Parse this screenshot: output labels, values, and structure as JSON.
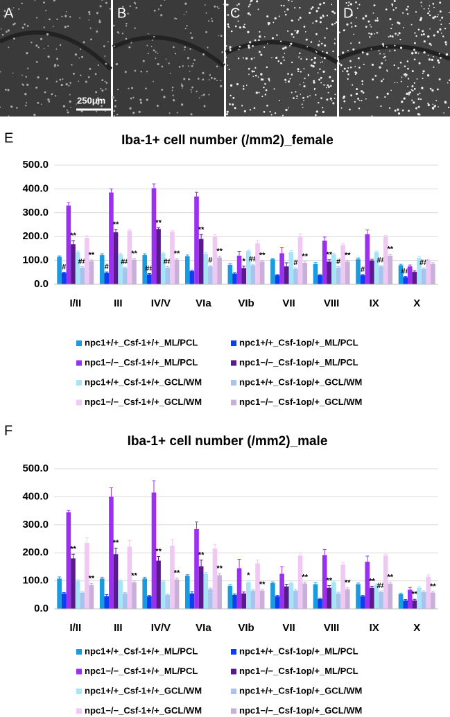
{
  "panels": [
    {
      "label": "A"
    },
    {
      "label": "B"
    },
    {
      "label": "C"
    },
    {
      "label": "D"
    }
  ],
  "scale_bar": "250μm",
  "chart_data": [
    {
      "type": "bar",
      "panel": "E",
      "title": "Iba-1+ cell number (/mm2)_female",
      "categories": [
        "I/II",
        "III",
        "IV/V",
        "VIa",
        "VIb",
        "VII",
        "VIII",
        "IX",
        "X"
      ],
      "ylim": [
        0,
        500
      ],
      "yticks": [
        {
          "value": 0,
          "label": "0.0"
        },
        {
          "value": 100,
          "label": "100.0"
        },
        {
          "value": 200,
          "label": "200.0"
        },
        {
          "value": 300,
          "label": "300.0"
        },
        {
          "value": 400,
          "label": "400.0"
        },
        {
          "value": 500,
          "label": "500.0"
        }
      ],
      "grid": true,
      "series": [
        {
          "name": "npc1+/+_Csf-1+/+_ML/PCL",
          "color": "#1a9be0",
          "values": [
            115,
            122,
            122,
            118,
            82,
            105,
            85,
            105,
            80
          ],
          "errors": [
            4,
            6,
            6,
            5,
            4,
            3,
            6,
            5,
            4
          ],
          "annotations": [
            null,
            null,
            null,
            null,
            null,
            null,
            null,
            null,
            null
          ]
        },
        {
          "name": "npc1+/+_Csf-1op/+_ML/PCL",
          "color": "#0a3ef0",
          "values": [
            48,
            48,
            42,
            55,
            45,
            38,
            38,
            38,
            30
          ],
          "errors": [
            3,
            4,
            3,
            4,
            3,
            3,
            3,
            3,
            3
          ],
          "annotations": [
            "#",
            "#",
            "##",
            null,
            null,
            null,
            null,
            "#",
            "##"
          ]
        },
        {
          "name": "npc1−/−_Csf-1+/+_ML/PCL",
          "color": "#9b30f0",
          "values": [
            330,
            385,
            403,
            368,
            120,
            130,
            183,
            210,
            75
          ],
          "errors": [
            12,
            15,
            18,
            18,
            18,
            25,
            15,
            18,
            6
          ],
          "annotations": [
            null,
            null,
            null,
            null,
            null,
            null,
            null,
            null,
            null
          ]
        },
        {
          "name": "npc1−/−_Csf-1op/+_ML/PCL",
          "color": "#5a1a8c",
          "values": [
            168,
            218,
            232,
            190,
            68,
            75,
            95,
            100,
            52
          ],
          "errors": [
            15,
            12,
            5,
            18,
            8,
            15,
            8,
            5,
            4
          ],
          "annotations": [
            "**",
            "**",
            "**",
            "**",
            "*",
            null,
            "**",
            null,
            null
          ]
        },
        {
          "name": "npc1+/+_Csf-1+/+_GCL/WM",
          "color": "#a8e4f8",
          "values": [
            135,
            125,
            130,
            128,
            140,
            135,
            125,
            135,
            110
          ],
          "errors": [
            5,
            5,
            5,
            6,
            5,
            6,
            5,
            4,
            6
          ],
          "annotations": [
            null,
            null,
            null,
            null,
            null,
            null,
            null,
            null,
            null
          ]
        },
        {
          "name": "npc1+/+_Csf-1op/+_GCL/WM",
          "color": "#a8c4ec",
          "values": [
            70,
            68,
            70,
            75,
            80,
            65,
            70,
            75,
            65
          ],
          "errors": [
            4,
            4,
            4,
            4,
            4,
            4,
            4,
            4,
            4
          ],
          "annotations": [
            "##",
            "##",
            "##",
            "#",
            "##",
            "#",
            "#",
            "##",
            "##"
          ]
        },
        {
          "name": "npc1−/−_Csf-1+/+_GCL/WM",
          "color": "#f0c8f4",
          "values": [
            195,
            225,
            220,
            200,
            172,
            200,
            165,
            200,
            100
          ],
          "errors": [
            8,
            5,
            5,
            8,
            10,
            12,
            6,
            5,
            5
          ],
          "annotations": [
            null,
            null,
            null,
            null,
            null,
            null,
            null,
            null,
            null
          ]
        },
        {
          "name": "npc1−/−_Csf-1op/+_GCL/WM",
          "color": "#c8b0d8",
          "values": [
            97,
            103,
            103,
            112,
            95,
            90,
            95,
            120,
            85
          ],
          "errors": [
            5,
            5,
            5,
            6,
            5,
            5,
            5,
            6,
            5
          ],
          "annotations": [
            "**",
            "**",
            "**",
            "**",
            "**",
            "**",
            "**",
            "**",
            null
          ]
        }
      ]
    },
    {
      "type": "bar",
      "panel": "F",
      "title": "Iba-1+ cell number (/mm2)_male",
      "categories": [
        "I/II",
        "III",
        "IV/V",
        "VIa",
        "VIb",
        "VII",
        "VIII",
        "IX",
        "X"
      ],
      "ylim": [
        0,
        500
      ],
      "yticks": [
        {
          "value": 0,
          "label": "0.0"
        },
        {
          "value": 100,
          "label": "100.0"
        },
        {
          "value": 200,
          "label": "200.0"
        },
        {
          "value": 300,
          "label": "300.0"
        },
        {
          "value": 400,
          "label": "400.0"
        },
        {
          "value": 500,
          "label": "500.0"
        }
      ],
      "grid": true,
      "series": [
        {
          "name": "npc1+/+_Csf-1+/+_ML/PCL",
          "color": "#1a9be0",
          "values": [
            108,
            108,
            108,
            118,
            82,
            92,
            88,
            88,
            52
          ],
          "errors": [
            6,
            5,
            5,
            4,
            4,
            4,
            5,
            4,
            4
          ],
          "annotations": [
            null,
            null,
            null,
            null,
            null,
            null,
            null,
            null,
            null
          ]
        },
        {
          "name": "npc1+/+_Csf-1op/+_ML/PCL",
          "color": "#0a3ef0",
          "values": [
            55,
            45,
            45,
            55,
            50,
            45,
            35,
            45,
            30
          ],
          "errors": [
            3,
            6,
            3,
            6,
            3,
            3,
            3,
            3,
            3
          ],
          "annotations": [
            null,
            null,
            null,
            null,
            null,
            null,
            null,
            null,
            null
          ]
        },
        {
          "name": "npc1−/−_Csf-1+/+_ML/PCL",
          "color": "#9b30f0",
          "values": [
            345,
            400,
            415,
            285,
            145,
            125,
            192,
            168,
            68
          ],
          "errors": [
            6,
            32,
            42,
            25,
            32,
            25,
            20,
            20,
            8
          ],
          "annotations": [
            null,
            null,
            null,
            null,
            null,
            null,
            null,
            null,
            null
          ]
        },
        {
          "name": "npc1−/−_Csf-1op/+_ML/PCL",
          "color": "#5a1a8c",
          "values": [
            180,
            195,
            172,
            152,
            55,
            80,
            75,
            75,
            30
          ],
          "errors": [
            15,
            22,
            15,
            22,
            5,
            8,
            8,
            5,
            4
          ],
          "annotations": [
            "**",
            "**",
            "**",
            "**",
            null,
            null,
            "**",
            "**",
            "**"
          ]
        },
        {
          "name": "npc1+/+_Csf-1+/+_GCL/WM",
          "color": "#a8e4f8",
          "values": [
            100,
            100,
            98,
            125,
            95,
            92,
            95,
            85,
            75
          ],
          "errors": [
            4,
            4,
            4,
            5,
            6,
            4,
            4,
            4,
            4
          ],
          "annotations": [
            null,
            null,
            null,
            null,
            "*",
            null,
            null,
            null,
            null
          ]
        },
        {
          "name": "npc1+/+_Csf-1op/+_GCL/WM",
          "color": "#a8c4ec",
          "values": [
            58,
            55,
            50,
            70,
            65,
            65,
            55,
            60,
            60
          ],
          "errors": [
            3,
            3,
            3,
            4,
            4,
            4,
            4,
            4,
            4
          ],
          "annotations": [
            null,
            null,
            null,
            null,
            null,
            null,
            null,
            "##",
            null
          ]
        },
        {
          "name": "npc1−/−_Csf-1+/+_GCL/WM",
          "color": "#f0c8f4",
          "values": [
            235,
            222,
            225,
            215,
            162,
            190,
            158,
            190,
            115
          ],
          "errors": [
            18,
            22,
            22,
            15,
            12,
            10,
            8,
            5,
            6
          ],
          "annotations": [
            null,
            null,
            null,
            null,
            null,
            null,
            null,
            null,
            null
          ]
        },
        {
          "name": "npc1−/−_Csf-1op/+_GCL/WM",
          "color": "#c8b0d8",
          "values": [
            85,
            95,
            105,
            120,
            65,
            90,
            70,
            90,
            58
          ],
          "errors": [
            5,
            5,
            5,
            6,
            4,
            5,
            5,
            5,
            4
          ],
          "annotations": [
            "**",
            "**",
            "**",
            "**",
            "**",
            "**",
            "**",
            "**",
            "**"
          ]
        }
      ]
    }
  ]
}
